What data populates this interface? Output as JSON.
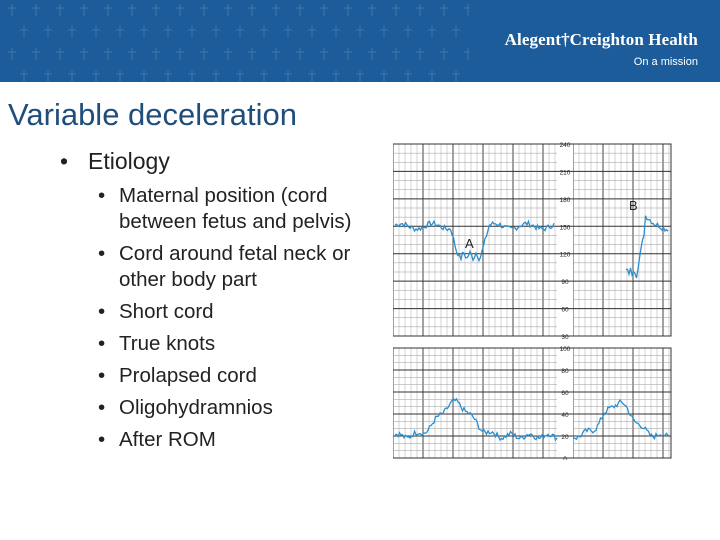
{
  "header": {
    "brand_name": "Alegent†Creighton Health",
    "tagline": "On a mission"
  },
  "slide": {
    "title": "Variable deceleration",
    "bullet": "Etiology",
    "bullet_glyph": "•",
    "sub_bullets": [
      "Maternal position (cord between fetus and pelvis)",
      "Cord around fetal neck or other body part",
      "Short cord",
      "True knots",
      "Prolapsed cord",
      "Oligohydramnios",
      "After ROM"
    ]
  },
  "chart_data": [
    {
      "type": "line",
      "panel": "fetal heart rate",
      "y_ticks": [
        "240",
        "210",
        "180",
        "150",
        "120",
        "90",
        "60",
        "30"
      ],
      "ylim": [
        30,
        240
      ],
      "annotations": [
        "A",
        "B"
      ],
      "color": "#2a8fd0"
    },
    {
      "type": "line",
      "panel": "uterine contractions",
      "y_ticks": [
        "100",
        "80",
        "60",
        "40",
        "20",
        "0"
      ],
      "ylim": [
        0,
        100
      ],
      "color": "#2a8fd0"
    }
  ]
}
